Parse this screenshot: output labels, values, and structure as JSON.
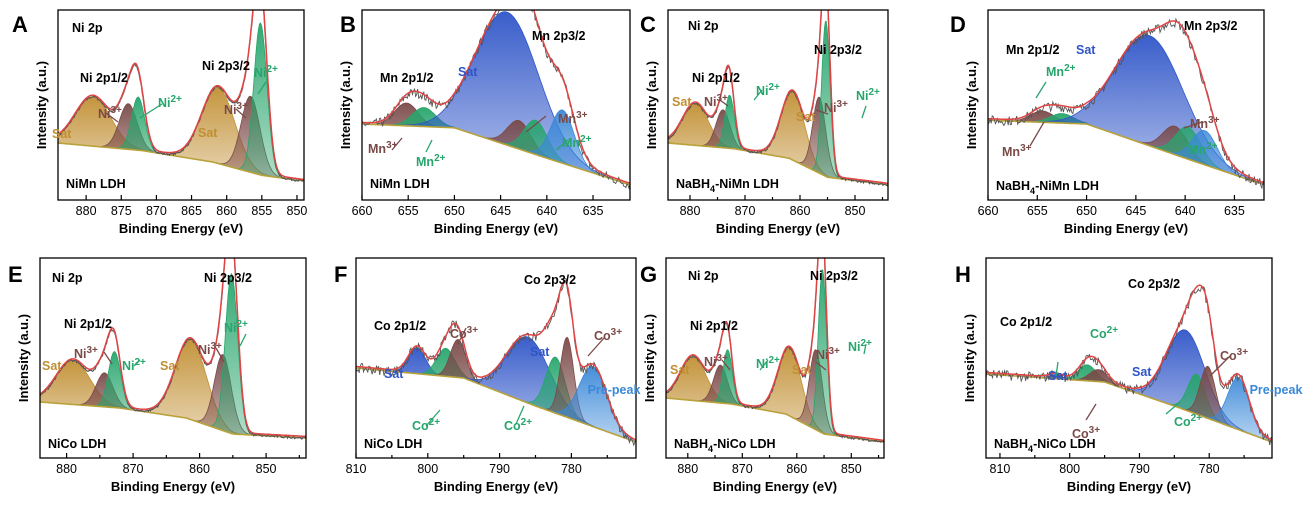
{
  "figure_type": "XPS spectra, 8 panels",
  "colors": {
    "Sat": "#c18f33",
    "Ni3+": "#7a4a48",
    "Ni2+": "#27a56c",
    "Mn3+": "#7a4a48",
    "Mn2+": "#27a56c",
    "Co3+": "#7a4a48",
    "Co2+": "#27a56c",
    "Sat_blue": "#2f55c8",
    "Pre-peak": "#3a88d8",
    "envelope": "#e04545",
    "raw": "#555555",
    "background": "#b9a23a"
  },
  "chart_data": [
    {
      "panel": "A",
      "type": "area",
      "element": "Ni 2p",
      "sample": "NiMn LDH",
      "xlabel": "Binding Energy (eV)",
      "ylabel": "Intensity (a.u.)",
      "xlim": [
        884,
        849
      ],
      "xticks": [
        880,
        875,
        870,
        865,
        860,
        855,
        850
      ],
      "reversed": true,
      "baseline": [
        [
          884,
          0.3
        ],
        [
          872,
          0.26
        ],
        [
          862,
          0.2
        ],
        [
          855,
          0.13
        ],
        [
          849,
          0.1
        ]
      ],
      "peaks": [
        {
          "label": "Sat",
          "center": 879.0,
          "fwhm": 6.0,
          "height": 0.26,
          "color": "Sat"
        },
        {
          "label": "Ni3+",
          "center": 874.0,
          "fwhm": 3.0,
          "height": 0.24,
          "color": "Ni3+"
        },
        {
          "label": "Ni2+",
          "center": 872.6,
          "fwhm": 2.2,
          "height": 0.28,
          "color": "Ni2+"
        },
        {
          "label": "Sat",
          "center": 861.2,
          "fwhm": 5.5,
          "height": 0.4,
          "color": "Sat"
        },
        {
          "label": "Ni3+",
          "center": 856.6,
          "fwhm": 3.2,
          "height": 0.4,
          "color": "Ni3+"
        },
        {
          "label": "Ni2+",
          "center": 855.2,
          "fwhm": 2.2,
          "height": 0.8,
          "color": "Ni2+"
        }
      ],
      "annotations": [
        {
          "text": "Ni 2p",
          "color": "#000000"
        },
        {
          "text": "Ni 2p1/2",
          "color": "#000000"
        },
        {
          "text": "Ni 2p3/2",
          "color": "#000000"
        },
        {
          "text": "Sat",
          "color": "#c18f33"
        },
        {
          "text": "Ni3+",
          "color": "#7a4a48"
        },
        {
          "text": "Ni2+",
          "color": "#27a56c"
        },
        {
          "text": "Sat",
          "color": "#c18f33"
        },
        {
          "text": "Ni3+",
          "color": "#7a4a48"
        },
        {
          "text": "Ni2+",
          "color": "#27a56c"
        }
      ]
    },
    {
      "panel": "B",
      "type": "area",
      "element": "Mn 2p",
      "sample": "NiMn LDH",
      "xlabel": "Binding Energy (eV)",
      "ylabel": "Intensity (a.u.)",
      "xlim": [
        660,
        631
      ],
      "xticks": [
        660,
        655,
        650,
        645,
        640,
        635
      ],
      "reversed": true,
      "baseline": [
        [
          660,
          0.4
        ],
        [
          650,
          0.38
        ],
        [
          640,
          0.22
        ],
        [
          631,
          0.08
        ]
      ],
      "peaks": [
        {
          "label": "Mn3+",
          "center": 655.2,
          "fwhm": 3.0,
          "height": 0.12,
          "color": "Mn3+"
        },
        {
          "label": "Mn2+",
          "center": 653.3,
          "fwhm": 3.0,
          "height": 0.1,
          "color": "Mn2+"
        },
        {
          "label": "Sat",
          "center": 644.3,
          "fwhm": 8.0,
          "height": 0.7,
          "color": "Sat_blue"
        },
        {
          "label": "Mn3+",
          "center": 643.0,
          "fwhm": 3.0,
          "height": 0.15,
          "color": "Mn3+"
        },
        {
          "label": "Mn2+",
          "center": 641.2,
          "fwhm": 3.0,
          "height": 0.18,
          "color": "Mn2+"
        },
        {
          "label": "",
          "center": 638.3,
          "fwhm": 3.0,
          "height": 0.28,
          "color": "Pre-peak"
        }
      ],
      "annotations": [
        {
          "text": "Mn 2p1/2",
          "color": "#000000"
        },
        {
          "text": "Mn 2p3/2",
          "color": "#000000"
        },
        {
          "text": "Sat",
          "color": "#2f55c8"
        },
        {
          "text": "Mn3+",
          "color": "#7a4a48"
        },
        {
          "text": "Mn2+",
          "color": "#27a56c"
        },
        {
          "text": "Mn3+",
          "color": "#7a4a48"
        },
        {
          "text": "Mn2+",
          "color": "#27a56c"
        }
      ]
    },
    {
      "panel": "C",
      "type": "area",
      "element": "Ni 2p",
      "sample": "NaBH4-NiMn LDH",
      "xlabel": "Binding Energy (eV)",
      "ylabel": "Intensity (a.u.)",
      "xlim": [
        884,
        844
      ],
      "xticks": [
        880,
        870,
        860,
        850
      ],
      "reversed": true,
      "baseline": [
        [
          884,
          0.3
        ],
        [
          872,
          0.27
        ],
        [
          862,
          0.22
        ],
        [
          855,
          0.12
        ],
        [
          844,
          0.08
        ]
      ],
      "peaks": [
        {
          "label": "Sat",
          "center": 879.0,
          "fwhm": 5.5,
          "height": 0.22,
          "color": "Sat"
        },
        {
          "label": "Ni3+",
          "center": 874.0,
          "fwhm": 3.0,
          "height": 0.2,
          "color": "Ni3+"
        },
        {
          "label": "Ni2+",
          "center": 872.8,
          "fwhm": 2.0,
          "height": 0.28,
          "color": "Ni2+"
        },
        {
          "label": "Sat",
          "center": 861.3,
          "fwhm": 5.0,
          "height": 0.36,
          "color": "Sat"
        },
        {
          "label": "Ni3+",
          "center": 856.5,
          "fwhm": 2.8,
          "height": 0.4,
          "color": "Ni3+"
        },
        {
          "label": "Ni2+",
          "center": 855.3,
          "fwhm": 1.8,
          "height": 0.82,
          "color": "Ni2+"
        }
      ],
      "annotations": [
        {
          "text": "Ni 2p",
          "color": "#000000"
        },
        {
          "text": "Ni 2p1/2",
          "color": "#000000"
        },
        {
          "text": "Ni 2p3/2",
          "color": "#000000"
        },
        {
          "text": "Sat",
          "color": "#c18f33"
        },
        {
          "text": "Ni3+",
          "color": "#7a4a48"
        },
        {
          "text": "Ni2+",
          "color": "#27a56c"
        },
        {
          "text": "Sat",
          "color": "#c18f33"
        },
        {
          "text": "Ni3+",
          "color": "#7a4a48"
        },
        {
          "text": "Ni2+",
          "color": "#27a56c"
        }
      ]
    },
    {
      "panel": "D",
      "type": "area",
      "element": "Mn 2p",
      "sample": "NaBH4-NiMn LDH",
      "xlabel": "Binding Energy (eV)",
      "ylabel": "Intensity (a.u.)",
      "xlim": [
        660,
        632
      ],
      "xticks": [
        660,
        655,
        650,
        645,
        640,
        635
      ],
      "reversed": true,
      "baseline": [
        [
          660,
          0.42
        ],
        [
          650,
          0.4
        ],
        [
          640,
          0.22
        ],
        [
          632,
          0.08
        ]
      ],
      "peaks": [
        {
          "label": "Mn3+",
          "center": 654.5,
          "fwhm": 2.8,
          "height": 0.06,
          "color": "Mn3+"
        },
        {
          "label": "Mn2+",
          "center": 652.5,
          "fwhm": 2.8,
          "height": 0.05,
          "color": "Mn2+"
        },
        {
          "label": "Sat",
          "center": 643.6,
          "fwhm": 8.0,
          "height": 0.58,
          "color": "Sat_blue"
        },
        {
          "label": "Mn3+",
          "center": 641.0,
          "fwhm": 3.0,
          "height": 0.15,
          "color": "Mn3+"
        },
        {
          "label": "Mn2+",
          "center": 639.7,
          "fwhm": 3.0,
          "height": 0.17,
          "color": "Mn2+"
        },
        {
          "label": "",
          "center": 638.0,
          "fwhm": 3.0,
          "height": 0.18,
          "color": "Pre-peak"
        }
      ],
      "annotations": [
        {
          "text": "Mn 2p1/2",
          "color": "#000000"
        },
        {
          "text": "Mn 2p3/2",
          "color": "#000000"
        },
        {
          "text": "Sat",
          "color": "#2f55c8"
        },
        {
          "text": "Mn2+",
          "color": "#27a56c"
        },
        {
          "text": "Mn3+",
          "color": "#7a4a48"
        },
        {
          "text": "Mn3+",
          "color": "#7a4a48"
        },
        {
          "text": "Mn2+",
          "color": "#27a56c"
        }
      ]
    },
    {
      "panel": "E",
      "type": "area",
      "element": "Ni 2p",
      "sample": "NiCo LDH",
      "xlabel": "Binding Energy (eV)",
      "ylabel": "Intensity (a.u.)",
      "xlim": [
        884,
        844
      ],
      "xticks": [
        880,
        870,
        860,
        850
      ],
      "reversed": true,
      "baseline": [
        [
          884,
          0.28
        ],
        [
          872,
          0.25
        ],
        [
          862,
          0.2
        ],
        [
          855,
          0.12
        ],
        [
          844,
          0.1
        ]
      ],
      "peaks": [
        {
          "label": "Sat",
          "center": 879.0,
          "fwhm": 6.0,
          "height": 0.22,
          "color": "Sat"
        },
        {
          "label": "Ni3+",
          "center": 874.3,
          "fwhm": 3.0,
          "height": 0.17,
          "color": "Ni3+"
        },
        {
          "label": "Ni2+",
          "center": 872.8,
          "fwhm": 2.2,
          "height": 0.28,
          "color": "Ni2+"
        },
        {
          "label": "Sat",
          "center": 861.3,
          "fwhm": 5.5,
          "height": 0.4,
          "color": "Sat"
        },
        {
          "label": "Ni3+",
          "center": 856.5,
          "fwhm": 3.0,
          "height": 0.38,
          "color": "Ni3+"
        },
        {
          "label": "Ni2+",
          "center": 855.2,
          "fwhm": 2.2,
          "height": 0.8,
          "color": "Ni2+"
        }
      ],
      "annotations": [
        {
          "text": "Ni 2p",
          "color": "#000000"
        },
        {
          "text": "Ni 2p1/2",
          "color": "#000000"
        },
        {
          "text": "Ni 2p3/2",
          "color": "#000000"
        },
        {
          "text": "Sat",
          "color": "#c18f33"
        },
        {
          "text": "Ni3+",
          "color": "#7a4a48"
        },
        {
          "text": "Ni2+",
          "color": "#27a56c"
        },
        {
          "text": "Sat",
          "color": "#c18f33"
        },
        {
          "text": "Ni3+",
          "color": "#7a4a48"
        },
        {
          "text": "Ni2+",
          "color": "#27a56c"
        }
      ]
    },
    {
      "panel": "F",
      "type": "area",
      "element": "Co 2p",
      "sample": "NiCo LDH",
      "xlabel": "Binding Energy (eV)",
      "ylabel": "",
      "xlim": [
        810,
        771
      ],
      "xticks": [
        810,
        800,
        790,
        780
      ],
      "reversed": true,
      "baseline": [
        [
          810,
          0.45
        ],
        [
          795,
          0.4
        ],
        [
          785,
          0.26
        ],
        [
          771,
          0.08
        ]
      ],
      "peaks": [
        {
          "label": "Sat",
          "center": 801.5,
          "fwhm": 2.8,
          "height": 0.13,
          "color": "Sat_blue"
        },
        {
          "label": "Co2+",
          "center": 797.5,
          "fwhm": 3.0,
          "height": 0.14,
          "color": "Co2+"
        },
        {
          "label": "Co3+",
          "center": 795.8,
          "fwhm": 2.5,
          "height": 0.19,
          "color": "Co3+"
        },
        {
          "label": "Sat",
          "center": 786.0,
          "fwhm": 7.0,
          "height": 0.33,
          "color": "Sat_blue"
        },
        {
          "label": "Co2+",
          "center": 782.2,
          "fwhm": 3.2,
          "height": 0.28,
          "color": "Co2+"
        },
        {
          "label": "Co3+",
          "center": 780.6,
          "fwhm": 2.2,
          "height": 0.4,
          "color": "Co3+"
        },
        {
          "label": "Pre-peak",
          "center": 777.0,
          "fwhm": 4.5,
          "height": 0.3,
          "color": "Pre-peak"
        }
      ],
      "annotations": [
        {
          "text": "Co 2p1/2",
          "color": "#000000"
        },
        {
          "text": "Co 2p3/2",
          "color": "#000000"
        },
        {
          "text": "Sat",
          "color": "#2f55c8"
        },
        {
          "text": "Co3+",
          "color": "#7a4a48"
        },
        {
          "text": "Sat",
          "color": "#2f55c8"
        },
        {
          "text": "Co3+",
          "color": "#7a4a48"
        },
        {
          "text": "Pre-peak",
          "color": "#3a88d8"
        },
        {
          "text": "Co2+",
          "color": "#27a56c"
        },
        {
          "text": "Co2+",
          "color": "#27a56c"
        }
      ]
    },
    {
      "panel": "G",
      "type": "area",
      "element": "Ni 2p",
      "sample": "NaBH4-NiCo LDH",
      "xlabel": "Binding Energy (eV)",
      "ylabel": "Intensity (a.u.)",
      "xlim": [
        884,
        844
      ],
      "xticks": [
        880,
        870,
        860,
        850
      ],
      "reversed": true,
      "baseline": [
        [
          884,
          0.3
        ],
        [
          872,
          0.27
        ],
        [
          862,
          0.22
        ],
        [
          855,
          0.12
        ],
        [
          844,
          0.08
        ]
      ],
      "peaks": [
        {
          "label": "Sat",
          "center": 879.0,
          "fwhm": 5.5,
          "height": 0.22,
          "color": "Sat"
        },
        {
          "label": "Ni3+",
          "center": 874.0,
          "fwhm": 3.0,
          "height": 0.19,
          "color": "Ni3+"
        },
        {
          "label": "Ni2+",
          "center": 872.7,
          "fwhm": 2.0,
          "height": 0.27,
          "color": "Ni2+"
        },
        {
          "label": "Sat",
          "center": 861.3,
          "fwhm": 5.0,
          "height": 0.34,
          "color": "Sat"
        },
        {
          "label": "Ni3+",
          "center": 856.5,
          "fwhm": 2.8,
          "height": 0.4,
          "color": "Ni3+"
        },
        {
          "label": "Ni2+",
          "center": 855.3,
          "fwhm": 1.8,
          "height": 0.82,
          "color": "Ni2+"
        }
      ],
      "annotations": [
        {
          "text": "Ni 2p",
          "color": "#000000"
        },
        {
          "text": "Ni 2p1/2",
          "color": "#000000"
        },
        {
          "text": "Ni 2p3/2",
          "color": "#000000"
        },
        {
          "text": "Sat",
          "color": "#c18f33"
        },
        {
          "text": "Ni3+",
          "color": "#7a4a48"
        },
        {
          "text": "Ni2+",
          "color": "#27a56c"
        },
        {
          "text": "Sat",
          "color": "#c18f33"
        },
        {
          "text": "Ni3+",
          "color": "#7a4a48"
        },
        {
          "text": "Ni2+",
          "color": "#27a56c"
        }
      ]
    },
    {
      "panel": "H",
      "type": "area",
      "element": "Co 2p",
      "sample": "NaBH4-NiCo LDH",
      "xlabel": "Binding Energy (eV)",
      "ylabel": "Intensity (a.u.)",
      "xlim": [
        812,
        771
      ],
      "xticks": [
        810,
        800,
        790,
        780
      ],
      "reversed": true,
      "baseline": [
        [
          812,
          0.42
        ],
        [
          795,
          0.38
        ],
        [
          785,
          0.26
        ],
        [
          771,
          0.08
        ]
      ],
      "peaks": [
        {
          "label": "Sat",
          "center": 802.0,
          "fwhm": 2.2,
          "height": 0.02,
          "color": "Sat_blue"
        },
        {
          "label": "Co2+",
          "center": 797.5,
          "fwhm": 3.0,
          "height": 0.08,
          "color": "Co2+"
        },
        {
          "label": "Co3+",
          "center": 795.9,
          "fwhm": 3.0,
          "height": 0.06,
          "color": "Co3+"
        },
        {
          "label": "Sat",
          "center": 783.4,
          "fwhm": 6.5,
          "height": 0.4,
          "color": "Sat_blue"
        },
        {
          "label": "Co2+",
          "center": 781.8,
          "fwhm": 3.0,
          "height": 0.2,
          "color": "Co2+"
        },
        {
          "label": "Co3+",
          "center": 780.2,
          "fwhm": 2.6,
          "height": 0.26,
          "color": "Co3+"
        },
        {
          "label": "Pre-peak",
          "center": 775.8,
          "fwhm": 3.6,
          "height": 0.26,
          "color": "Pre-peak"
        }
      ],
      "annotations": [
        {
          "text": "Co 2p1/2",
          "color": "#000000"
        },
        {
          "text": "Co 2p3/2",
          "color": "#000000"
        },
        {
          "text": "Co2+",
          "color": "#27a56c"
        },
        {
          "text": "Sat",
          "color": "#2f55c8"
        },
        {
          "text": "Sat",
          "color": "#2f55c8"
        },
        {
          "text": "Co3+",
          "color": "#7a4a48"
        },
        {
          "text": "Pre-peak",
          "color": "#3a88d8"
        },
        {
          "text": "Co3+",
          "color": "#7a4a48"
        },
        {
          "text": "Co2+",
          "color": "#27a56c"
        }
      ]
    }
  ]
}
